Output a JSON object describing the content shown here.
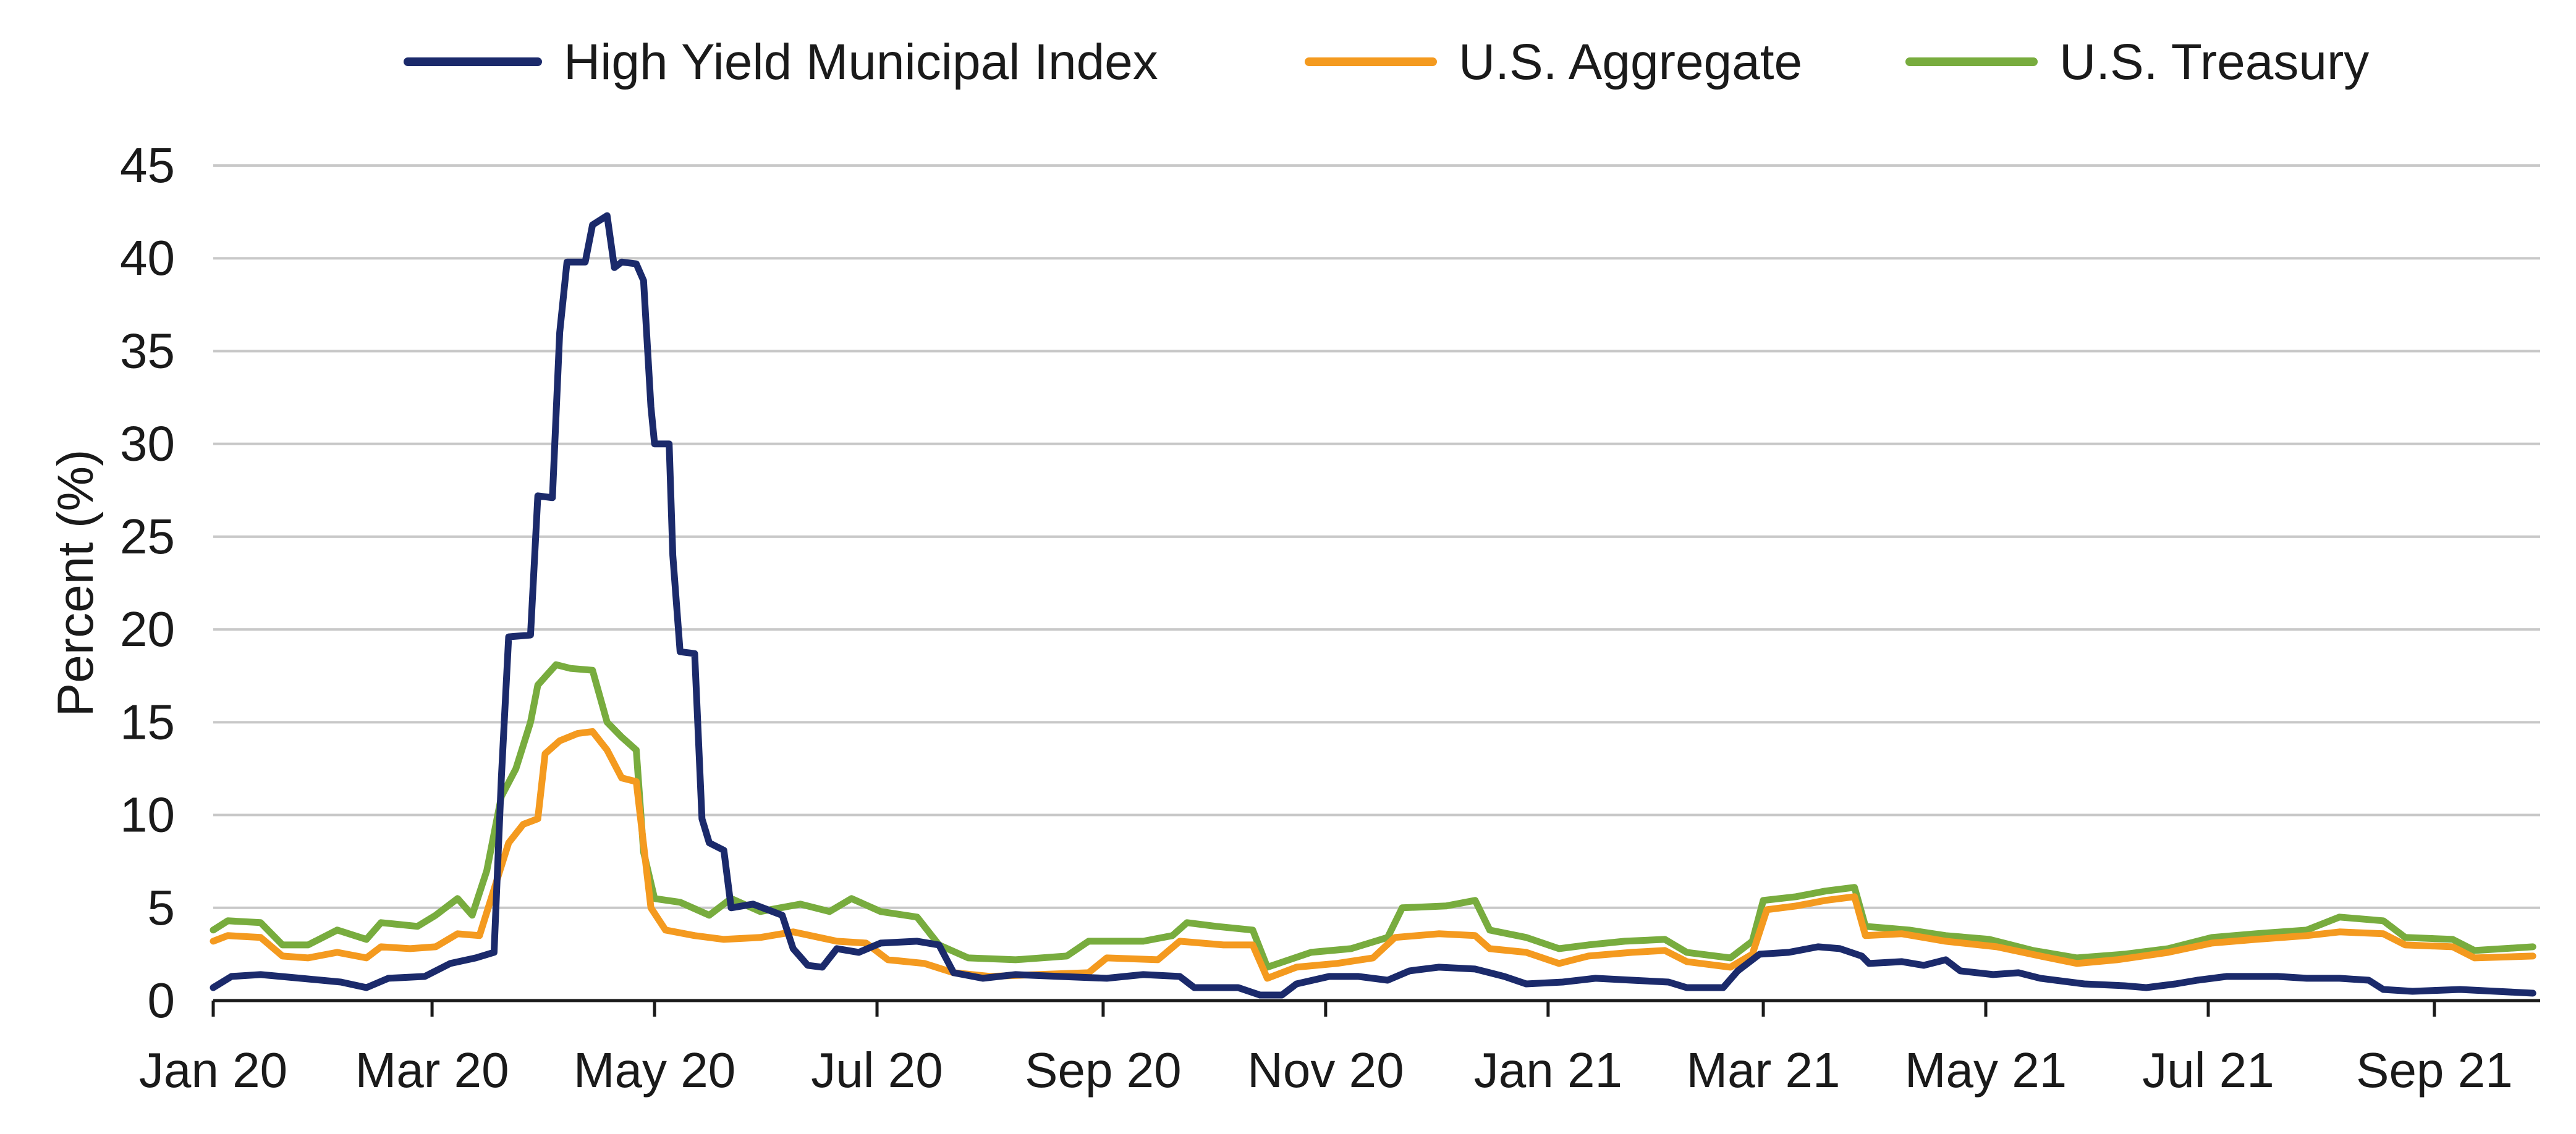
{
  "chart_data": {
    "type": "line",
    "title": "",
    "xlabel": "",
    "ylabel": "Percent (%)",
    "ylim": [
      0,
      45
    ],
    "yticks": [
      0,
      5,
      10,
      15,
      20,
      25,
      30,
      35,
      40,
      45
    ],
    "xlim": [
      "2020-01-01",
      "2021-09-30"
    ],
    "xticks": [
      {
        "date": "2020-01-01",
        "label": "Jan 20"
      },
      {
        "date": "2020-03-01",
        "label": "Mar 20"
      },
      {
        "date": "2020-05-01",
        "label": "May 20"
      },
      {
        "date": "2020-07-01",
        "label": "Jul 20"
      },
      {
        "date": "2020-09-01",
        "label": "Sep 20"
      },
      {
        "date": "2020-11-01",
        "label": "Nov 20"
      },
      {
        "date": "2021-01-01",
        "label": "Jan 21"
      },
      {
        "date": "2021-03-01",
        "label": "Mar 21"
      },
      {
        "date": "2021-05-01",
        "label": "May 21"
      },
      {
        "date": "2021-07-01",
        "label": "Jul 21"
      },
      {
        "date": "2021-09-01",
        "label": "Sep 21"
      }
    ],
    "grid": true,
    "legend": "top",
    "series": [
      {
        "name": "High Yield Municipal Index",
        "color": "#1b2a6b",
        "points": [
          [
            "2020-01-01",
            0.7
          ],
          [
            "2020-01-06",
            1.3
          ],
          [
            "2020-01-14",
            1.4
          ],
          [
            "2020-01-25",
            1.2
          ],
          [
            "2020-02-05",
            1.0
          ],
          [
            "2020-02-12",
            0.7
          ],
          [
            "2020-02-18",
            1.2
          ],
          [
            "2020-02-28",
            1.3
          ],
          [
            "2020-03-06",
            2.0
          ],
          [
            "2020-03-13",
            2.3
          ],
          [
            "2020-03-18",
            2.6
          ],
          [
            "2020-03-20",
            12.0
          ],
          [
            "2020-03-22",
            19.6
          ],
          [
            "2020-03-28",
            19.7
          ],
          [
            "2020-03-30",
            27.2
          ],
          [
            "2020-04-03",
            27.1
          ],
          [
            "2020-04-05",
            36.0
          ],
          [
            "2020-04-07",
            39.8
          ],
          [
            "2020-04-12",
            39.8
          ],
          [
            "2020-04-14",
            41.8
          ],
          [
            "2020-04-18",
            42.3
          ],
          [
            "2020-04-20",
            39.5
          ],
          [
            "2020-04-22",
            39.8
          ],
          [
            "2020-04-26",
            39.7
          ],
          [
            "2020-04-28",
            38.8
          ],
          [
            "2020-04-30",
            32.0
          ],
          [
            "2020-05-01",
            30.0
          ],
          [
            "2020-05-05",
            30.0
          ],
          [
            "2020-05-06",
            24.0
          ],
          [
            "2020-05-08",
            18.8
          ],
          [
            "2020-05-12",
            18.7
          ],
          [
            "2020-05-14",
            9.8
          ],
          [
            "2020-05-16",
            8.5
          ],
          [
            "2020-05-20",
            8.1
          ],
          [
            "2020-05-22",
            5.0
          ],
          [
            "2020-05-28",
            5.2
          ],
          [
            "2020-06-05",
            4.6
          ],
          [
            "2020-06-08",
            2.8
          ],
          [
            "2020-06-12",
            1.9
          ],
          [
            "2020-06-16",
            1.8
          ],
          [
            "2020-06-20",
            2.8
          ],
          [
            "2020-06-26",
            2.6
          ],
          [
            "2020-07-02",
            3.1
          ],
          [
            "2020-07-12",
            3.2
          ],
          [
            "2020-07-18",
            3.0
          ],
          [
            "2020-07-22",
            1.5
          ],
          [
            "2020-07-30",
            1.2
          ],
          [
            "2020-08-08",
            1.4
          ],
          [
            "2020-08-20",
            1.3
          ],
          [
            "2020-09-02",
            1.2
          ],
          [
            "2020-09-12",
            1.4
          ],
          [
            "2020-09-22",
            1.3
          ],
          [
            "2020-09-26",
            0.7
          ],
          [
            "2020-10-08",
            0.7
          ],
          [
            "2020-10-14",
            0.3
          ],
          [
            "2020-10-20",
            0.3
          ],
          [
            "2020-10-24",
            0.9
          ],
          [
            "2020-11-02",
            1.3
          ],
          [
            "2020-11-10",
            1.3
          ],
          [
            "2020-11-18",
            1.1
          ],
          [
            "2020-11-24",
            1.6
          ],
          [
            "2020-12-02",
            1.8
          ],
          [
            "2020-12-12",
            1.7
          ],
          [
            "2020-12-20",
            1.3
          ],
          [
            "2020-12-26",
            0.9
          ],
          [
            "2021-01-05",
            1.0
          ],
          [
            "2021-01-14",
            1.2
          ],
          [
            "2021-01-24",
            1.1
          ],
          [
            "2021-02-03",
            1.0
          ],
          [
            "2021-02-08",
            0.7
          ],
          [
            "2021-02-18",
            0.7
          ],
          [
            "2021-02-22",
            1.6
          ],
          [
            "2021-02-28",
            2.5
          ],
          [
            "2021-03-08",
            2.6
          ],
          [
            "2021-03-16",
            2.9
          ],
          [
            "2021-03-22",
            2.8
          ],
          [
            "2021-03-28",
            2.4
          ],
          [
            "2021-03-30",
            2.0
          ],
          [
            "2021-04-08",
            2.1
          ],
          [
            "2021-04-14",
            1.9
          ],
          [
            "2021-04-20",
            2.2
          ],
          [
            "2021-04-24",
            1.6
          ],
          [
            "2021-05-03",
            1.4
          ],
          [
            "2021-05-10",
            1.5
          ],
          [
            "2021-05-16",
            1.2
          ],
          [
            "2021-05-28",
            0.9
          ],
          [
            "2021-06-08",
            0.8
          ],
          [
            "2021-06-14",
            0.7
          ],
          [
            "2021-06-22",
            0.9
          ],
          [
            "2021-06-28",
            1.1
          ],
          [
            "2021-07-06",
            1.3
          ],
          [
            "2021-07-20",
            1.3
          ],
          [
            "2021-07-28",
            1.2
          ],
          [
            "2021-08-06",
            1.2
          ],
          [
            "2021-08-14",
            1.1
          ],
          [
            "2021-08-18",
            0.6
          ],
          [
            "2021-08-26",
            0.5
          ],
          [
            "2021-09-08",
            0.6
          ],
          [
            "2021-09-18",
            0.5
          ],
          [
            "2021-09-28",
            0.4
          ]
        ]
      },
      {
        "name": "U.S. Aggregate",
        "color": "#f49a1f",
        "points": [
          [
            "2020-01-01",
            3.2
          ],
          [
            "2020-01-05",
            3.5
          ],
          [
            "2020-01-14",
            3.4
          ],
          [
            "2020-01-20",
            2.4
          ],
          [
            "2020-01-27",
            2.3
          ],
          [
            "2020-02-04",
            2.6
          ],
          [
            "2020-02-12",
            2.3
          ],
          [
            "2020-02-16",
            2.9
          ],
          [
            "2020-02-24",
            2.8
          ],
          [
            "2020-03-02",
            2.9
          ],
          [
            "2020-03-08",
            3.6
          ],
          [
            "2020-03-14",
            3.5
          ],
          [
            "2020-03-18",
            6.0
          ],
          [
            "2020-03-22",
            8.5
          ],
          [
            "2020-03-26",
            9.5
          ],
          [
            "2020-03-30",
            9.8
          ],
          [
            "2020-04-01",
            13.3
          ],
          [
            "2020-04-05",
            14.0
          ],
          [
            "2020-04-10",
            14.4
          ],
          [
            "2020-04-14",
            14.5
          ],
          [
            "2020-04-18",
            13.5
          ],
          [
            "2020-04-22",
            12.0
          ],
          [
            "2020-04-26",
            11.8
          ],
          [
            "2020-04-30",
            5.0
          ],
          [
            "2020-05-04",
            3.8
          ],
          [
            "2020-05-12",
            3.5
          ],
          [
            "2020-05-20",
            3.3
          ],
          [
            "2020-05-30",
            3.4
          ],
          [
            "2020-06-08",
            3.7
          ],
          [
            "2020-06-20",
            3.2
          ],
          [
            "2020-06-28",
            3.1
          ],
          [
            "2020-07-04",
            2.2
          ],
          [
            "2020-07-14",
            2.0
          ],
          [
            "2020-07-22",
            1.5
          ],
          [
            "2020-08-01",
            1.3
          ],
          [
            "2020-08-14",
            1.4
          ],
          [
            "2020-08-28",
            1.5
          ],
          [
            "2020-09-02",
            2.3
          ],
          [
            "2020-09-16",
            2.2
          ],
          [
            "2020-09-22",
            3.2
          ],
          [
            "2020-10-04",
            3.0
          ],
          [
            "2020-10-12",
            3.0
          ],
          [
            "2020-10-16",
            1.2
          ],
          [
            "2020-10-24",
            1.8
          ],
          [
            "2020-11-04",
            2.0
          ],
          [
            "2020-11-14",
            2.3
          ],
          [
            "2020-11-20",
            3.4
          ],
          [
            "2020-12-02",
            3.6
          ],
          [
            "2020-12-12",
            3.5
          ],
          [
            "2020-12-16",
            2.8
          ],
          [
            "2020-12-26",
            2.6
          ],
          [
            "2021-01-04",
            2.0
          ],
          [
            "2021-01-12",
            2.4
          ],
          [
            "2021-01-24",
            2.6
          ],
          [
            "2021-02-02",
            2.7
          ],
          [
            "2021-02-08",
            2.1
          ],
          [
            "2021-02-20",
            1.8
          ],
          [
            "2021-02-26",
            2.5
          ],
          [
            "2021-03-02",
            4.9
          ],
          [
            "2021-03-10",
            5.1
          ],
          [
            "2021-03-18",
            5.4
          ],
          [
            "2021-03-26",
            5.6
          ],
          [
            "2021-03-29",
            3.5
          ],
          [
            "2021-04-08",
            3.6
          ],
          [
            "2021-04-20",
            3.2
          ],
          [
            "2021-05-04",
            2.9
          ],
          [
            "2021-05-16",
            2.4
          ],
          [
            "2021-05-26",
            2.0
          ],
          [
            "2021-06-06",
            2.2
          ],
          [
            "2021-06-20",
            2.6
          ],
          [
            "2021-07-02",
            3.1
          ],
          [
            "2021-07-14",
            3.3
          ],
          [
            "2021-07-28",
            3.5
          ],
          [
            "2021-08-06",
            3.7
          ],
          [
            "2021-08-18",
            3.6
          ],
          [
            "2021-08-24",
            3.0
          ],
          [
            "2021-09-06",
            2.9
          ],
          [
            "2021-09-12",
            2.3
          ],
          [
            "2021-09-28",
            2.4
          ]
        ]
      },
      {
        "name": "U.S. Treasury",
        "color": "#78ac3e",
        "points": [
          [
            "2020-01-01",
            3.8
          ],
          [
            "2020-01-05",
            4.3
          ],
          [
            "2020-01-14",
            4.2
          ],
          [
            "2020-01-20",
            3.0
          ],
          [
            "2020-01-27",
            3.0
          ],
          [
            "2020-02-04",
            3.8
          ],
          [
            "2020-02-12",
            3.3
          ],
          [
            "2020-02-16",
            4.2
          ],
          [
            "2020-02-26",
            4.0
          ],
          [
            "2020-03-02",
            4.6
          ],
          [
            "2020-03-08",
            5.5
          ],
          [
            "2020-03-12",
            4.6
          ],
          [
            "2020-03-16",
            7.0
          ],
          [
            "2020-03-20",
            11.0
          ],
          [
            "2020-03-24",
            12.5
          ],
          [
            "2020-03-28",
            15.0
          ],
          [
            "2020-03-30",
            17.0
          ],
          [
            "2020-04-04",
            18.1
          ],
          [
            "2020-04-08",
            17.9
          ],
          [
            "2020-04-14",
            17.8
          ],
          [
            "2020-04-18",
            15.0
          ],
          [
            "2020-04-22",
            14.2
          ],
          [
            "2020-04-26",
            13.5
          ],
          [
            "2020-04-28",
            8.0
          ],
          [
            "2020-05-01",
            5.5
          ],
          [
            "2020-05-08",
            5.3
          ],
          [
            "2020-05-16",
            4.6
          ],
          [
            "2020-05-22",
            5.5
          ],
          [
            "2020-05-30",
            4.8
          ],
          [
            "2020-06-10",
            5.2
          ],
          [
            "2020-06-18",
            4.8
          ],
          [
            "2020-06-24",
            5.5
          ],
          [
            "2020-07-02",
            4.8
          ],
          [
            "2020-07-12",
            4.5
          ],
          [
            "2020-07-18",
            3.0
          ],
          [
            "2020-07-26",
            2.3
          ],
          [
            "2020-08-08",
            2.2
          ],
          [
            "2020-08-22",
            2.4
          ],
          [
            "2020-08-28",
            3.2
          ],
          [
            "2020-09-12",
            3.2
          ],
          [
            "2020-09-20",
            3.5
          ],
          [
            "2020-09-24",
            4.2
          ],
          [
            "2020-10-02",
            4.0
          ],
          [
            "2020-10-12",
            3.8
          ],
          [
            "2020-10-16",
            1.8
          ],
          [
            "2020-10-28",
            2.6
          ],
          [
            "2020-11-08",
            2.8
          ],
          [
            "2020-11-18",
            3.4
          ],
          [
            "2020-11-22",
            5.0
          ],
          [
            "2020-12-04",
            5.1
          ],
          [
            "2020-12-12",
            5.4
          ],
          [
            "2020-12-16",
            3.8
          ],
          [
            "2020-12-26",
            3.4
          ],
          [
            "2021-01-04",
            2.8
          ],
          [
            "2021-01-12",
            3.0
          ],
          [
            "2021-01-22",
            3.2
          ],
          [
            "2021-02-02",
            3.3
          ],
          [
            "2021-02-08",
            2.6
          ],
          [
            "2021-02-20",
            2.3
          ],
          [
            "2021-02-26",
            3.2
          ],
          [
            "2021-03-01",
            5.4
          ],
          [
            "2021-03-10",
            5.6
          ],
          [
            "2021-03-18",
            5.9
          ],
          [
            "2021-03-26",
            6.1
          ],
          [
            "2021-03-29",
            4.0
          ],
          [
            "2021-04-10",
            3.8
          ],
          [
            "2021-04-20",
            3.5
          ],
          [
            "2021-05-02",
            3.3
          ],
          [
            "2021-05-14",
            2.7
          ],
          [
            "2021-05-26",
            2.3
          ],
          [
            "2021-06-08",
            2.5
          ],
          [
            "2021-06-20",
            2.8
          ],
          [
            "2021-07-02",
            3.4
          ],
          [
            "2021-07-14",
            3.6
          ],
          [
            "2021-07-28",
            3.8
          ],
          [
            "2021-08-06",
            4.5
          ],
          [
            "2021-08-18",
            4.3
          ],
          [
            "2021-08-24",
            3.4
          ],
          [
            "2021-09-06",
            3.3
          ],
          [
            "2021-09-12",
            2.7
          ],
          [
            "2021-09-28",
            2.9
          ]
        ]
      }
    ]
  }
}
